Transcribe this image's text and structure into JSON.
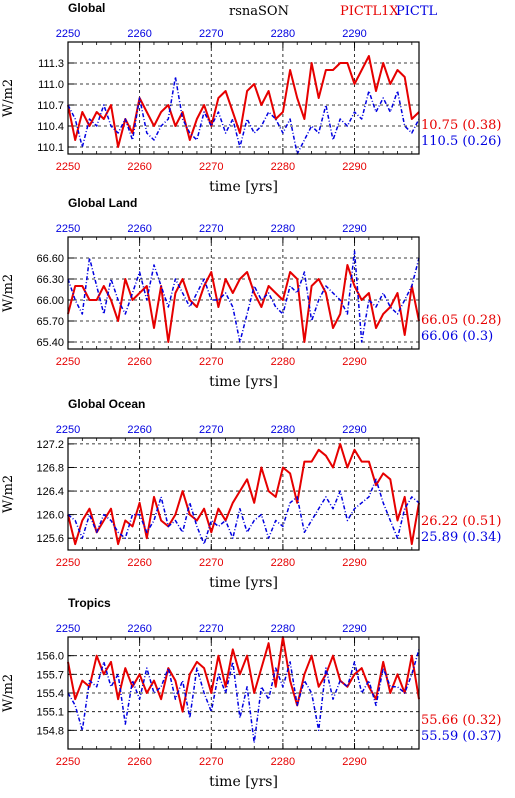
{
  "header": {
    "variable": "rsna",
    "season": "SON",
    "run_a": "PICTL1X",
    "run_b": "PICTL",
    "color_a": "#e60000",
    "color_b": "#0000e0"
  },
  "chart_data": [
    {
      "type": "line",
      "title": "Global",
      "xlabel": "time [yrs]",
      "ylabel": "W/m2",
      "x_start": 2250,
      "xlim": [
        2250,
        2299
      ],
      "ylim": [
        110.0,
        111.6
      ],
      "xticks": [
        2250,
        2260,
        2270,
        2280,
        2290
      ],
      "yticks": [
        "110.1",
        "110.4",
        "110.7",
        "111.0",
        "111.3"
      ],
      "grid": true,
      "series": [
        {
          "name": "PICTL1X",
          "color": "#e60000",
          "values": [
            110.7,
            110.2,
            110.6,
            110.4,
            110.6,
            110.5,
            110.7,
            110.1,
            110.5,
            110.3,
            110.8,
            110.6,
            110.4,
            110.6,
            110.7,
            110.4,
            110.6,
            110.2,
            110.5,
            110.7,
            110.4,
            110.8,
            110.9,
            110.6,
            110.3,
            110.9,
            111.0,
            110.7,
            110.9,
            110.5,
            110.6,
            111.2,
            110.8,
            110.5,
            111.3,
            110.8,
            111.2,
            111.2,
            111.3,
            111.3,
            111.0,
            111.2,
            111.4,
            110.9,
            111.3,
            111.0,
            111.2,
            111.1,
            110.5,
            110.6
          ]
        },
        {
          "name": "PICTL",
          "color": "#0000e0",
          "values": [
            110.7,
            110.5,
            110.1,
            110.5,
            110.4,
            110.7,
            110.4,
            110.3,
            110.5,
            110.2,
            110.8,
            110.3,
            110.2,
            110.4,
            110.5,
            111.1,
            110.5,
            110.3,
            110.2,
            110.6,
            110.4,
            110.6,
            110.3,
            110.5,
            110.1,
            110.5,
            110.3,
            110.4,
            110.6,
            110.5,
            110.3,
            110.5,
            110.0,
            110.2,
            110.4,
            110.3,
            110.7,
            110.2,
            110.5,
            110.4,
            110.6,
            110.5,
            110.9,
            110.6,
            110.8,
            110.6,
            110.9,
            110.4,
            110.3,
            110.5
          ]
        }
      ],
      "annotations": [
        {
          "text": "10.75 (0.38)",
          "color": "#e60000"
        },
        {
          "text": "110.5 (0.26)",
          "color": "#0000e0"
        }
      ]
    },
    {
      "type": "line",
      "title": "Global Land",
      "xlabel": "time [yrs]",
      "ylabel": "W/m2",
      "x_start": 2250,
      "xlim": [
        2250,
        2299
      ],
      "ylim": [
        65.3,
        66.9
      ],
      "xticks": [
        2250,
        2260,
        2270,
        2280,
        2290
      ],
      "yticks": [
        "65.40",
        "65.70",
        "66.00",
        "66.30",
        "66.60"
      ],
      "grid": true,
      "series": [
        {
          "name": "PICTL1X",
          "color": "#e60000",
          "values": [
            65.8,
            66.2,
            66.2,
            66.0,
            66.0,
            66.2,
            66.0,
            65.7,
            66.3,
            66.0,
            66.1,
            66.2,
            65.6,
            66.2,
            65.4,
            66.1,
            66.3,
            66.0,
            65.9,
            66.2,
            66.4,
            65.9,
            66.3,
            66.1,
            66.3,
            66.4,
            66.1,
            65.9,
            66.2,
            66.1,
            66.0,
            66.4,
            66.3,
            65.4,
            66.2,
            66.3,
            66.1,
            65.6,
            65.8,
            66.5,
            66.2,
            66.0,
            66.1,
            65.6,
            65.8,
            65.9,
            66.1,
            65.5,
            66.2,
            65.7
          ]
        },
        {
          "name": "PICTL",
          "color": "#0000e0",
          "values": [
            66.3,
            66.0,
            65.8,
            66.6,
            66.2,
            65.8,
            66.3,
            66.0,
            65.8,
            66.1,
            66.4,
            66.0,
            66.5,
            66.2,
            65.9,
            66.3,
            66.1,
            65.9,
            66.1,
            66.3,
            66.0,
            66.0,
            66.1,
            65.9,
            65.4,
            65.8,
            66.2,
            66.0,
            66.1,
            65.9,
            65.8,
            66.2,
            66.1,
            66.4,
            65.7,
            66.0,
            66.2,
            66.1,
            66.0,
            65.8,
            66.7,
            65.4,
            66.0,
            65.9,
            66.1,
            65.9,
            65.8,
            66.0,
            66.2,
            66.6
          ]
        }
      ],
      "annotations": [
        {
          "text": "66.05 (0.28)",
          "color": "#e60000"
        },
        {
          "text": "66.06 (0.3)",
          "color": "#0000e0"
        }
      ]
    },
    {
      "type": "line",
      "title": "Global Ocean",
      "xlabel": "time [yrs]",
      "ylabel": "W/m2",
      "x_start": 2250,
      "xlim": [
        2250,
        2299
      ],
      "ylim": [
        125.4,
        127.3
      ],
      "xticks": [
        2250,
        2260,
        2270,
        2280,
        2290
      ],
      "yticks": [
        "125.6",
        "126.0",
        "126.4",
        "126.8",
        "127.2"
      ],
      "grid": true,
      "series": [
        {
          "name": "PICTL1X",
          "color": "#e60000",
          "values": [
            126.0,
            125.5,
            125.9,
            126.1,
            125.7,
            125.9,
            126.1,
            125.5,
            125.9,
            125.8,
            126.2,
            125.6,
            126.3,
            125.9,
            125.8,
            126.0,
            126.4,
            126.0,
            125.9,
            126.1,
            125.7,
            126.1,
            125.9,
            126.2,
            126.4,
            126.6,
            126.2,
            126.8,
            126.4,
            126.3,
            126.8,
            126.7,
            126.2,
            126.9,
            126.9,
            127.1,
            127.0,
            126.8,
            127.2,
            126.8,
            127.1,
            126.9,
            126.9,
            126.5,
            126.7,
            126.6,
            125.9,
            126.3,
            125.5,
            126.2
          ]
        },
        {
          "name": "PICTL",
          "color": "#0000e0",
          "values": [
            126.0,
            125.9,
            125.6,
            126.0,
            125.7,
            126.0,
            125.9,
            125.7,
            125.6,
            126.0,
            126.0,
            125.7,
            125.9,
            126.3,
            125.8,
            125.9,
            125.7,
            126.2,
            125.8,
            125.5,
            125.9,
            125.8,
            125.9,
            125.6,
            126.1,
            125.7,
            125.9,
            126.0,
            125.6,
            125.9,
            125.8,
            126.2,
            126.3,
            125.7,
            125.9,
            126.1,
            126.3,
            126.1,
            126.4,
            125.9,
            126.1,
            126.2,
            126.3,
            126.6,
            126.2,
            125.9,
            125.6,
            126.1,
            126.3,
            126.2
          ]
        }
      ],
      "annotations": [
        {
          "text": "26.22 (0.51)",
          "color": "#e60000"
        },
        {
          "text": "25.89 (0.34)",
          "color": "#0000e0"
        }
      ]
    },
    {
      "type": "line",
      "title": "Tropics",
      "xlabel": "time [yrs]",
      "ylabel": "W/m2",
      "x_start": 2250,
      "xlim": [
        2250,
        2299
      ],
      "ylim": [
        154.5,
        156.3
      ],
      "xticks": [
        2250,
        2260,
        2270,
        2280,
        2290
      ],
      "yticks": [
        "154.8",
        "155.1",
        "155.4",
        "155.7",
        "156.0"
      ],
      "grid": true,
      "series": [
        {
          "name": "PICTL1X",
          "color": "#e60000",
          "values": [
            155.9,
            155.3,
            155.6,
            155.5,
            156.0,
            155.7,
            155.9,
            155.3,
            155.8,
            155.5,
            155.7,
            155.4,
            155.6,
            155.3,
            155.8,
            155.6,
            155.1,
            155.7,
            155.9,
            155.8,
            155.4,
            156.0,
            155.5,
            156.1,
            155.7,
            156.0,
            155.4,
            155.8,
            156.2,
            155.5,
            156.3,
            155.6,
            155.2,
            155.7,
            156.0,
            155.5,
            155.7,
            156.0,
            155.6,
            155.5,
            155.7,
            155.8,
            155.5,
            155.3,
            155.9,
            155.4,
            155.7,
            155.4,
            156.0,
            155.3
          ]
        },
        {
          "name": "PICTL",
          "color": "#0000e0",
          "values": [
            155.4,
            155.2,
            154.8,
            155.6,
            155.5,
            155.9,
            155.5,
            155.7,
            154.9,
            155.6,
            155.3,
            155.8,
            155.4,
            155.5,
            155.8,
            155.3,
            155.6,
            155.0,
            155.8,
            155.4,
            155.1,
            155.7,
            155.4,
            155.9,
            155.0,
            155.5,
            154.6,
            155.5,
            155.3,
            155.8,
            155.5,
            155.9,
            155.2,
            155.6,
            155.4,
            154.8,
            155.8,
            155.3,
            155.6,
            155.5,
            155.9,
            155.4,
            155.6,
            155.2,
            155.8,
            155.5,
            155.5,
            155.4,
            155.7,
            156.1
          ]
        }
      ],
      "annotations": [
        {
          "text": "55.66 (0.32)",
          "color": "#e60000"
        },
        {
          "text": "55.59 (0.37)",
          "color": "#0000e0"
        }
      ]
    }
  ]
}
